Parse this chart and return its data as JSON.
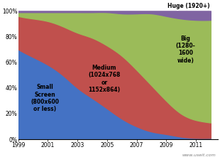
{
  "years": [
    1999,
    2000,
    2001,
    2002,
    2003,
    2004,
    2005,
    2006,
    2007,
    2008,
    2009,
    2010,
    2011,
    2012
  ],
  "small": [
    70,
    64,
    58,
    50,
    40,
    32,
    24,
    16,
    10,
    6,
    4,
    2,
    1,
    1
  ],
  "medium": [
    26,
    30,
    34,
    38,
    43,
    47,
    49,
    49,
    44,
    36,
    26,
    18,
    14,
    12
  ],
  "big": [
    3,
    5,
    7,
    11,
    16,
    20,
    26,
    33,
    44,
    56,
    66,
    74,
    78,
    80
  ],
  "huge": [
    1,
    1,
    1,
    1,
    1,
    1,
    1,
    2,
    2,
    2,
    4,
    6,
    7,
    7
  ],
  "color_small": "#4472c4",
  "color_medium": "#c0504d",
  "color_big": "#9bbb59",
  "color_huge": "#8064a2",
  "background": "#ffffff",
  "watermark": "www.useit.com",
  "label_small": "Small\nScreen\n(800x600\nor less)",
  "label_medium": "Medium\n(1024x768\nor\n1152x864)",
  "label_big": "Big\n(1280-\n1600\nwide)",
  "label_huge": "Huge (1920+)",
  "xticks": [
    1999,
    2001,
    2003,
    2005,
    2007,
    2009,
    2011
  ],
  "yticks": [
    0,
    20,
    40,
    60,
    80,
    100
  ],
  "xlim": [
    1999,
    2012.5
  ],
  "ylim": [
    0,
    107
  ]
}
